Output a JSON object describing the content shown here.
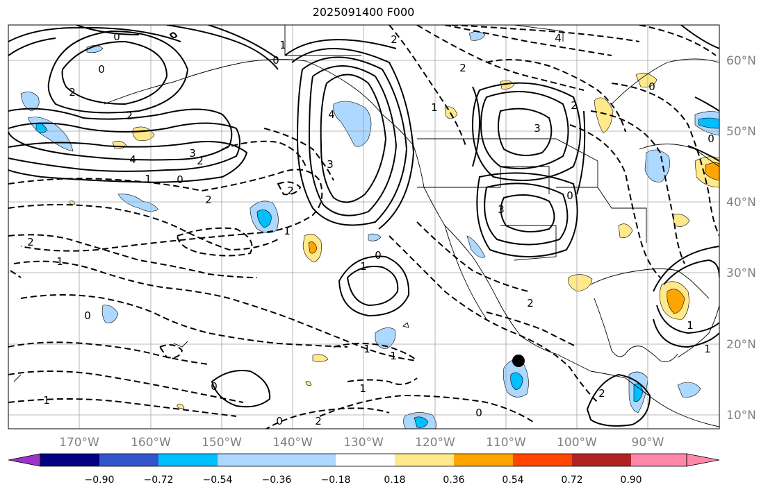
{
  "title": "2025091400 F000",
  "lon_labels": [
    "170°W",
    "160°W",
    "150°W",
    "140°W",
    "130°W",
    "120°W",
    "110°W",
    "100°W",
    "90°W"
  ],
  "lat_labels": [
    "60°N",
    "50°N",
    "40°N",
    "30°N",
    "20°N",
    "10°N"
  ],
  "colorbar": {
    "tick_labels": [
      "−0.90",
      "−0.72",
      "−0.54",
      "−0.36",
      "−0.18",
      "0.18",
      "0.36",
      "0.54",
      "0.72",
      "0.90"
    ],
    "colors": [
      "#9933cc",
      "#000080",
      "#3355cc",
      "#00bfff",
      "#add8ff",
      "#ffffff",
      "#ffe98a",
      "#ffa500",
      "#ff4500",
      "#b22222",
      "#ff88aa"
    ]
  },
  "contour_labels": [
    "0",
    "2",
    "0",
    "2",
    "4",
    "3",
    "2",
    "1",
    "0",
    "2",
    "2",
    "1",
    "0",
    "4",
    "3",
    "2",
    "1",
    "2",
    "0",
    "1",
    "4",
    "3",
    "2",
    "3",
    "1",
    "0",
    "2",
    "2",
    "1",
    "0",
    "1",
    "1",
    "0",
    "1",
    "0",
    "2",
    "0",
    "1",
    "2",
    "1",
    "0",
    "1",
    "0"
  ],
  "marker": {
    "type": "dot",
    "color": "#000000"
  }
}
